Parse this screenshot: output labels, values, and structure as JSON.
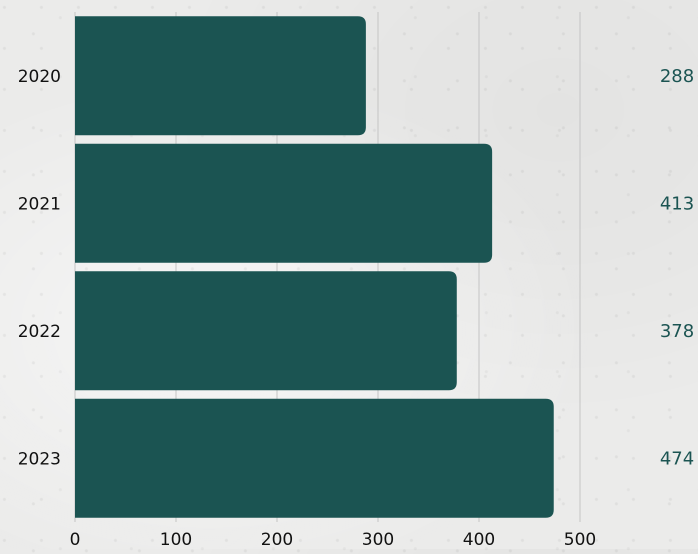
{
  "chart_data": {
    "type": "bar",
    "orientation": "horizontal",
    "categories": [
      "2020",
      "2021",
      "2022",
      "2023"
    ],
    "values": [
      288,
      413,
      378,
      474
    ],
    "xlim": [
      0,
      500
    ],
    "x_ticks": [
      "0",
      "100",
      "200",
      "300",
      "400",
      "500"
    ],
    "value_labels": [
      "288",
      "413",
      "378",
      "474"
    ],
    "grid": "vertical",
    "title": "",
    "xlabel": "",
    "ylabel": ""
  },
  "colors": {
    "bar": "#1b5452",
    "value_label": "#1b5452",
    "axis_text": "#111111",
    "grid": "#c4c4c4",
    "background": "#ebebea"
  }
}
